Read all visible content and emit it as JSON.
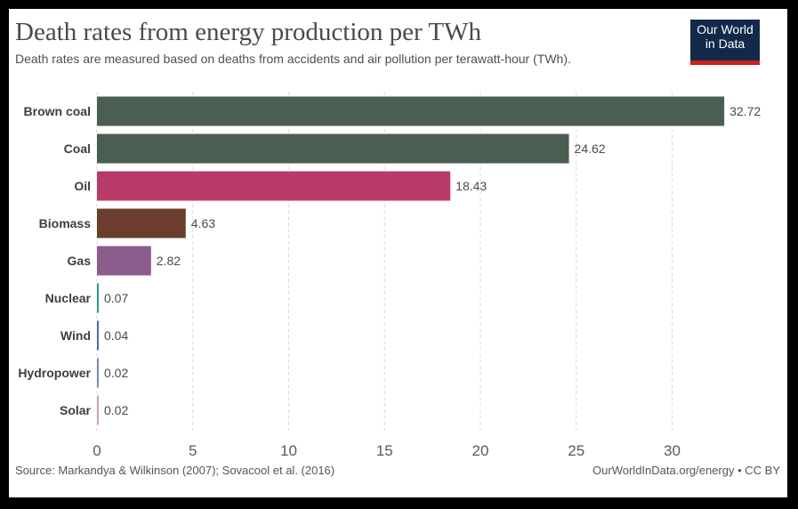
{
  "header": {
    "title": "Death rates from energy production per TWh",
    "subtitle": "Death rates are measured based on deaths from accidents and air pollution per terawatt-hour (TWh).",
    "logo_line1": "Our World",
    "logo_line2": "in Data"
  },
  "footer": {
    "source": "Source: Markandya & Wilkinson (2007); Sovacool et al. (2016)",
    "credit": "OurWorldInData.org/energy • CC BY"
  },
  "chart_data": {
    "type": "bar",
    "orientation": "horizontal",
    "title": "Death rates from energy production per TWh",
    "subtitle": "Death rates are measured based on deaths from accidents and air pollution per terawatt-hour (TWh).",
    "xlabel": "",
    "ylabel": "",
    "categories": [
      "Brown coal",
      "Coal",
      "Oil",
      "Biomass",
      "Gas",
      "Nuclear",
      "Wind",
      "Hydropower",
      "Solar"
    ],
    "values": [
      32.72,
      24.62,
      18.43,
      4.63,
      2.82,
      0.07,
      0.04,
      0.02,
      0.02
    ],
    "value_labels": [
      "32.72",
      "24.62",
      "18.43",
      "4.63",
      "2.82",
      "0.07",
      "0.04",
      "0.02",
      "0.02"
    ],
    "colors": [
      "#4a5e52",
      "#4a5e52",
      "#b83a68",
      "#6b3e2e",
      "#8b5c8c",
      "#2a9d8f",
      "#4a6fa5",
      "#7a8fb0",
      "#c9a9a6"
    ],
    "xticks": [
      0,
      5,
      10,
      15,
      20,
      25,
      30
    ],
    "xtick_labels": [
      "0",
      "5",
      "10",
      "15",
      "20",
      "25",
      "30"
    ],
    "xlim": [
      0,
      33
    ],
    "grid": "vertical dashed",
    "legend": "none"
  }
}
